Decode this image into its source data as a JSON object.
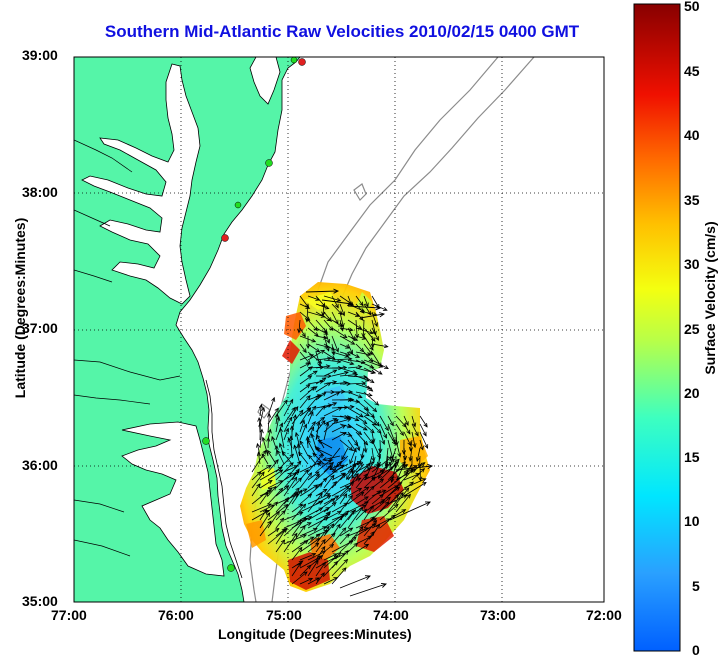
{
  "title": "Southern Mid-Atlantic Raw Velocities 2010/02/15 0400 GMT",
  "axes": {
    "xlabel": "Longitude (Degrees:Minutes)",
    "ylabel": "Latitude (Degrees:Minutes)",
    "xticks": [
      "77:00",
      "76:00",
      "75:00",
      "74:00",
      "73:00",
      "72:00"
    ],
    "yticks": [
      "39:00",
      "38:00",
      "37:00",
      "36:00",
      "35:00"
    ],
    "grid": "dotted"
  },
  "colorbar": {
    "label": "Surface Velocity (cm/s)",
    "ticks": [
      "0",
      "5",
      "10",
      "15",
      "20",
      "25",
      "30",
      "35",
      "40",
      "45",
      "50"
    ],
    "min": 0,
    "max": 50,
    "colormap": "jet"
  },
  "colors": {
    "land": "#55f5a8",
    "coast": "#000000",
    "bathymetry": "#8c8c8c",
    "station_active": "#22dd22",
    "station_inactive": "#e02020"
  }
}
